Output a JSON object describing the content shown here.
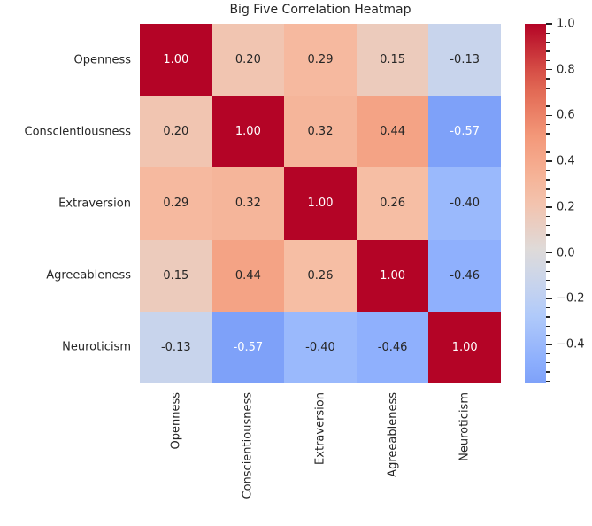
{
  "title": "Big Five Correlation Heatmap",
  "chart_data": {
    "type": "heatmap",
    "categories": [
      "Openness",
      "Conscientiousness",
      "Extraversion",
      "Agreeableness",
      "Neuroticism"
    ],
    "matrix": [
      [
        1.0,
        0.2,
        0.29,
        0.15,
        -0.13
      ],
      [
        0.2,
        1.0,
        0.32,
        0.44,
        -0.57
      ],
      [
        0.29,
        0.32,
        1.0,
        0.26,
        -0.4
      ],
      [
        0.15,
        0.44,
        0.26,
        1.0,
        -0.46
      ],
      [
        -0.13,
        -0.57,
        -0.4,
        -0.46,
        1.0
      ]
    ],
    "annotated": true,
    "value_decimals": 2,
    "colormap": "coolwarm",
    "center": 0,
    "vmin": -0.57,
    "vmax": 1.0,
    "colorbar": {
      "major_tick_values": [
        1.0,
        0.8,
        0.6,
        0.4,
        0.2,
        0.0,
        -0.2,
        -0.4
      ],
      "major_tick_labels": [
        "1.0",
        "0.8",
        "0.6",
        "0.4",
        "0.2",
        "0.0",
        "−0.2",
        "−0.4"
      ],
      "minor_tick_step": 0.04,
      "position": "right"
    },
    "grid": false,
    "legend": false
  },
  "colors": {
    "background": "#ffffff",
    "text_dark": "#262626",
    "text_light": "#ffffff",
    "tick_color": "#262626",
    "coolwarm_anchors": [
      {
        "t": 0.0,
        "hex": "#3b4cc0"
      },
      {
        "t": 0.125,
        "hex": "#6688ee"
      },
      {
        "t": 0.25,
        "hex": "#88abfd"
      },
      {
        "t": 0.375,
        "hex": "#b5cdfa"
      },
      {
        "t": 0.5,
        "hex": "#dddcdc"
      },
      {
        "t": 0.625,
        "hex": "#f6bfa6"
      },
      {
        "t": 0.75,
        "hex": "#f49a7b"
      },
      {
        "t": 0.875,
        "hex": "#de604d"
      },
      {
        "t": 1.0,
        "hex": "#b40426"
      }
    ]
  }
}
